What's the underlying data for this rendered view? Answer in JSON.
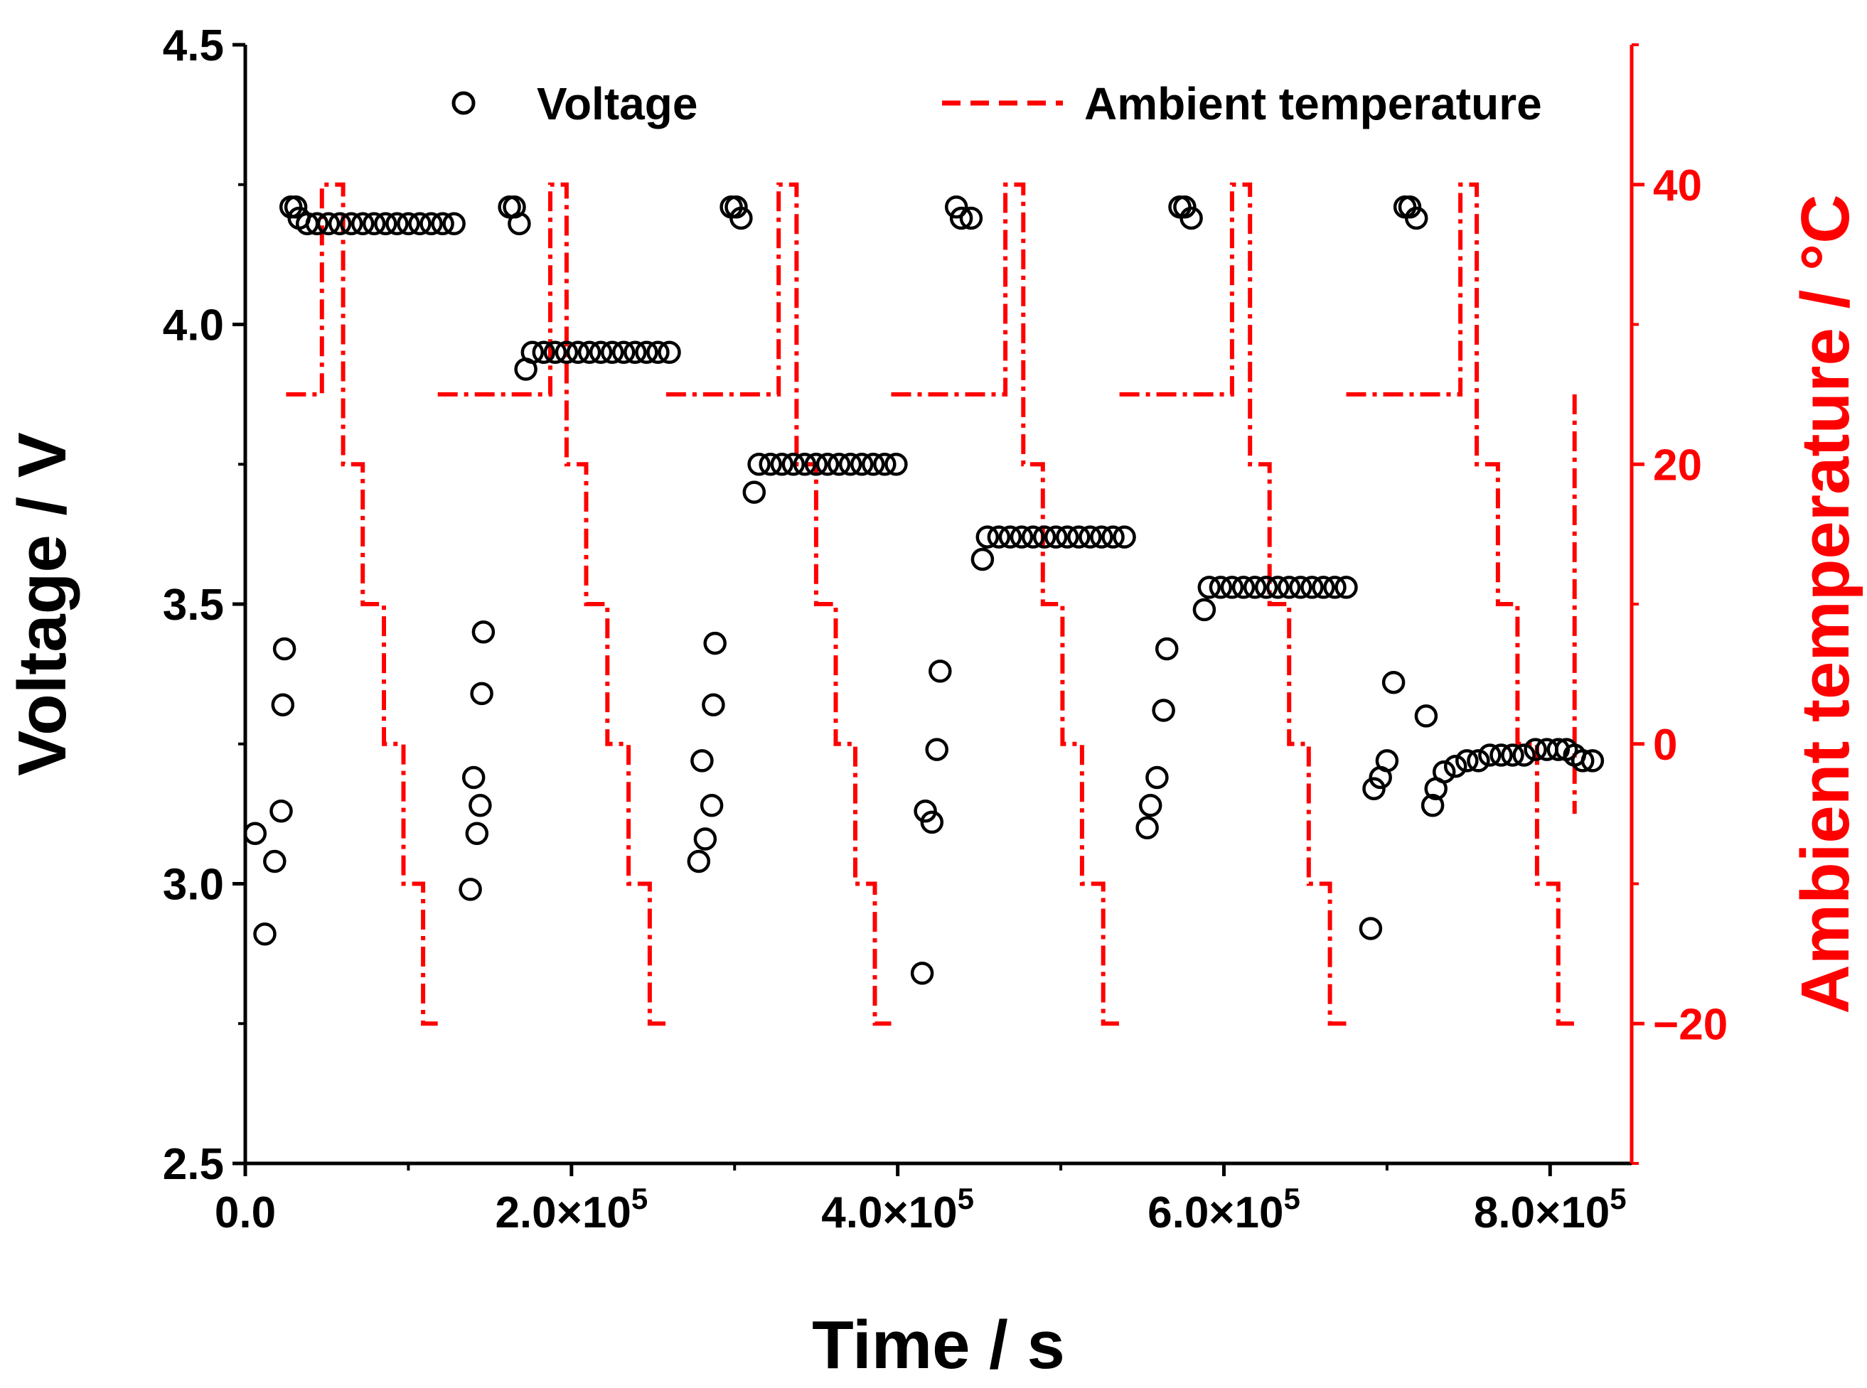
{
  "chart_data": {
    "type": "scatter",
    "title": "",
    "xlabel": "Time / s",
    "ylabel": "Voltage / V",
    "y2label": "Ambient temperature / °C",
    "xlim": [
      0,
      850000
    ],
    "ylim": [
      2.5,
      4.5
    ],
    "y2lim": [
      -30,
      50
    ],
    "x_ticks": [
      {
        "value": 0,
        "label": "0.0",
        "exp": ""
      },
      {
        "value": 200000,
        "label": "2.0×10",
        "exp": "5"
      },
      {
        "value": 400000,
        "label": "4.0×10",
        "exp": "5"
      },
      {
        "value": 600000,
        "label": "6.0×10",
        "exp": "5"
      },
      {
        "value": 800000,
        "label": "8.0×10",
        "exp": "5"
      }
    ],
    "y_ticks": [
      {
        "value": 2.5,
        "label": "2.5"
      },
      {
        "value": 3.0,
        "label": "3.0"
      },
      {
        "value": 3.5,
        "label": "3.5"
      },
      {
        "value": 4.0,
        "label": "4.0"
      },
      {
        "value": 4.5,
        "label": "4.5"
      }
    ],
    "y2_ticks": [
      {
        "value": -20,
        "label": "−20"
      },
      {
        "value": 0,
        "label": "0"
      },
      {
        "value": 20,
        "label": "20"
      },
      {
        "value": 40,
        "label": "40"
      }
    ],
    "legend": {
      "position": "top",
      "entries": [
        {
          "name": "Voltage",
          "marker": "open-circle",
          "color": "#000000"
        },
        {
          "name": "Ambient temperature",
          "marker": "dashed-line",
          "color": "#ff0000"
        }
      ]
    },
    "axis_color_right": "#ff0000",
    "series": [
      {
        "name": "Voltage",
        "axis": "left",
        "color": "#000000",
        "marker": "open-circle",
        "points": [
          [
            6000,
            3.09
          ],
          [
            12000,
            2.91
          ],
          [
            18000,
            3.04
          ],
          [
            22000,
            3.13
          ],
          [
            23000,
            3.32
          ],
          [
            24000,
            3.42
          ],
          [
            28000,
            4.21
          ],
          [
            31000,
            4.21
          ],
          [
            33000,
            4.19
          ],
          [
            38000,
            4.18
          ],
          [
            44000,
            4.18
          ],
          [
            51000,
            4.18
          ],
          [
            58000,
            4.18
          ],
          [
            65000,
            4.18
          ],
          [
            72000,
            4.18
          ],
          [
            79000,
            4.18
          ],
          [
            86000,
            4.18
          ],
          [
            93000,
            4.18
          ],
          [
            100000,
            4.18
          ],
          [
            107000,
            4.18
          ],
          [
            114000,
            4.18
          ],
          [
            121000,
            4.18
          ],
          [
            128000,
            4.18
          ],
          [
            138000,
            2.99
          ],
          [
            140000,
            3.19
          ],
          [
            142000,
            3.09
          ],
          [
            144000,
            3.14
          ],
          [
            145000,
            3.34
          ],
          [
            146000,
            3.45
          ],
          [
            162000,
            4.21
          ],
          [
            165000,
            4.21
          ],
          [
            168000,
            4.18
          ],
          [
            172000,
            3.92
          ],
          [
            176000,
            3.95
          ],
          [
            183000,
            3.95
          ],
          [
            190000,
            3.95
          ],
          [
            197000,
            3.95
          ],
          [
            204000,
            3.95
          ],
          [
            211000,
            3.95
          ],
          [
            218000,
            3.95
          ],
          [
            225000,
            3.95
          ],
          [
            232000,
            3.95
          ],
          [
            239000,
            3.95
          ],
          [
            246000,
            3.95
          ],
          [
            253000,
            3.95
          ],
          [
            260000,
            3.95
          ],
          [
            278000,
            3.04
          ],
          [
            280000,
            3.22
          ],
          [
            282000,
            3.08
          ],
          [
            286000,
            3.14
          ],
          [
            287000,
            3.32
          ],
          [
            288000,
            3.43
          ],
          [
            298000,
            4.21
          ],
          [
            301000,
            4.21
          ],
          [
            304000,
            4.19
          ],
          [
            312000,
            3.7
          ],
          [
            315000,
            3.75
          ],
          [
            322000,
            3.75
          ],
          [
            329000,
            3.75
          ],
          [
            336000,
            3.75
          ],
          [
            343000,
            3.75
          ],
          [
            350000,
            3.75
          ],
          [
            357000,
            3.75
          ],
          [
            364000,
            3.75
          ],
          [
            371000,
            3.75
          ],
          [
            378000,
            3.75
          ],
          [
            385000,
            3.75
          ],
          [
            392000,
            3.75
          ],
          [
            399000,
            3.75
          ],
          [
            415000,
            2.84
          ],
          [
            417000,
            3.13
          ],
          [
            421000,
            3.11
          ],
          [
            424000,
            3.24
          ],
          [
            426000,
            3.38
          ],
          [
            436000,
            4.21
          ],
          [
            439000,
            4.19
          ],
          [
            445000,
            4.19
          ],
          [
            452000,
            3.58
          ],
          [
            455000,
            3.62
          ],
          [
            462000,
            3.62
          ],
          [
            469000,
            3.62
          ],
          [
            476000,
            3.62
          ],
          [
            483000,
            3.62
          ],
          [
            490000,
            3.62
          ],
          [
            497000,
            3.62
          ],
          [
            504000,
            3.62
          ],
          [
            511000,
            3.62
          ],
          [
            518000,
            3.62
          ],
          [
            525000,
            3.62
          ],
          [
            532000,
            3.62
          ],
          [
            539000,
            3.62
          ],
          [
            553000,
            3.1
          ],
          [
            555000,
            3.14
          ],
          [
            559000,
            3.19
          ],
          [
            563000,
            3.31
          ],
          [
            565000,
            3.42
          ],
          [
            573000,
            4.21
          ],
          [
            576000,
            4.21
          ],
          [
            580000,
            4.19
          ],
          [
            588000,
            3.49
          ],
          [
            591000,
            3.53
          ],
          [
            598000,
            3.53
          ],
          [
            605000,
            3.53
          ],
          [
            612000,
            3.53
          ],
          [
            619000,
            3.53
          ],
          [
            626000,
            3.53
          ],
          [
            633000,
            3.53
          ],
          [
            640000,
            3.53
          ],
          [
            647000,
            3.53
          ],
          [
            654000,
            3.53
          ],
          [
            661000,
            3.53
          ],
          [
            668000,
            3.53
          ],
          [
            675000,
            3.53
          ],
          [
            690000,
            2.92
          ],
          [
            692000,
            3.17
          ],
          [
            696000,
            3.19
          ],
          [
            700000,
            3.22
          ],
          [
            704000,
            3.36
          ],
          [
            711000,
            4.21
          ],
          [
            714000,
            4.21
          ],
          [
            718000,
            4.19
          ],
          [
            724000,
            3.3
          ],
          [
            728000,
            3.14
          ],
          [
            730000,
            3.17
          ],
          [
            735000,
            3.2
          ],
          [
            742000,
            3.21
          ],
          [
            749000,
            3.22
          ],
          [
            756000,
            3.22
          ],
          [
            763000,
            3.23
          ],
          [
            770000,
            3.23
          ],
          [
            777000,
            3.23
          ],
          [
            784000,
            3.23
          ],
          [
            791000,
            3.24
          ],
          [
            798000,
            3.24
          ],
          [
            805000,
            3.24
          ],
          [
            810000,
            3.24
          ],
          [
            815000,
            3.23
          ],
          [
            820000,
            3.22
          ],
          [
            826000,
            3.22
          ]
        ]
      },
      {
        "name": "Ambient temperature",
        "axis": "right",
        "color": "#ff0000",
        "line_style": "dashed",
        "steps": [
          [
            [
              25000,
              25
            ],
            [
              47000,
              25
            ],
            [
              47000,
              40
            ],
            [
              60000,
              40
            ],
            [
              60000,
              20
            ],
            [
              72000,
              20
            ],
            [
              72000,
              10
            ],
            [
              85000,
              10
            ],
            [
              85000,
              0
            ],
            [
              97000,
              0
            ],
            [
              97000,
              -10
            ],
            [
              109000,
              -10
            ],
            [
              109000,
              -20
            ],
            [
              118000,
              -20
            ]
          ],
          [
            [
              118000,
              25
            ],
            [
              187000,
              25
            ],
            [
              187000,
              40
            ],
            [
              197000,
              40
            ],
            [
              197000,
              20
            ],
            [
              209000,
              20
            ],
            [
              209000,
              10
            ],
            [
              222000,
              10
            ],
            [
              222000,
              0
            ],
            [
              235000,
              0
            ],
            [
              235000,
              -10
            ],
            [
              248000,
              -10
            ],
            [
              248000,
              -20
            ],
            [
              258000,
              -20
            ]
          ],
          [
            [
              258000,
              25
            ],
            [
              327000,
              25
            ],
            [
              327000,
              40
            ],
            [
              338000,
              40
            ],
            [
              338000,
              20
            ],
            [
              350000,
              20
            ],
            [
              350000,
              10
            ],
            [
              362000,
              10
            ],
            [
              362000,
              0
            ],
            [
              374000,
              0
            ],
            [
              374000,
              -10
            ],
            [
              386000,
              -10
            ],
            [
              386000,
              -20
            ],
            [
              396000,
              -20
            ]
          ],
          [
            [
              396000,
              25
            ],
            [
              466000,
              25
            ],
            [
              466000,
              40
            ],
            [
              477000,
              40
            ],
            [
              477000,
              20
            ],
            [
              489000,
              20
            ],
            [
              489000,
              10
            ],
            [
              501000,
              10
            ],
            [
              501000,
              0
            ],
            [
              513000,
              0
            ],
            [
              513000,
              -10
            ],
            [
              526000,
              -10
            ],
            [
              526000,
              -20
            ],
            [
              536000,
              -20
            ]
          ],
          [
            [
              536000,
              25
            ],
            [
              605000,
              25
            ],
            [
              605000,
              40
            ],
            [
              616000,
              40
            ],
            [
              616000,
              20
            ],
            [
              628000,
              20
            ],
            [
              628000,
              10
            ],
            [
              640000,
              10
            ],
            [
              640000,
              0
            ],
            [
              652000,
              0
            ],
            [
              652000,
              -10
            ],
            [
              665000,
              -10
            ],
            [
              665000,
              -20
            ],
            [
              675000,
              -20
            ]
          ],
          [
            [
              675000,
              25
            ],
            [
              745000,
              25
            ],
            [
              745000,
              40
            ],
            [
              755000,
              40
            ],
            [
              755000,
              20
            ],
            [
              768000,
              20
            ],
            [
              768000,
              10
            ],
            [
              780000,
              10
            ],
            [
              780000,
              0
            ],
            [
              792000,
              0
            ],
            [
              792000,
              -10
            ],
            [
              805000,
              -10
            ],
            [
              805000,
              -20
            ],
            [
              815000,
              -20
            ]
          ],
          [
            [
              815000,
              25
            ],
            [
              815000,
              -5
            ]
          ]
        ]
      }
    ]
  }
}
